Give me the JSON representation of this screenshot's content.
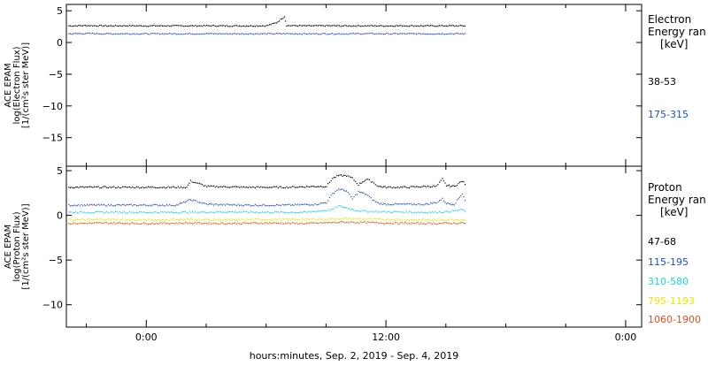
{
  "colors": {
    "background": "#ffffff",
    "axis": "#000000",
    "black": "#000000",
    "blue": "#1f4fd0",
    "cyan": "#19d4e6",
    "yellow": "#e8e800",
    "orange": "#e0501a"
  },
  "x_axis": {
    "label": "hours:minutes, Sep.  2, 2019 - Sep.  4, 2019",
    "ticks": [
      {
        "hour": 0,
        "label": "0:00"
      },
      {
        "hour": 12,
        "label": "12:00"
      },
      {
        "hour": 24,
        "label": "0:00"
      }
    ]
  },
  "chart_data": [
    {
      "type": "scatter",
      "panel": "electron",
      "title": "",
      "ylabel": "ACE EPAM\nlog(Electron Flux)\n[1/(cm²s ster MeV)]",
      "ylabel_lines": [
        "ACE EPAM",
        "log(Electron Flux)",
        "[1/(cm²s ster MeV)]"
      ],
      "legend_title_lines": [
        "Electron",
        "Energy ran",
        "[keV]"
      ],
      "xlim": [
        -4,
        24.8
      ],
      "ylim": [
        -19.5,
        6
      ],
      "yticks": [
        5,
        0,
        -5,
        -10,
        -15
      ],
      "x_unit": "hours from 0:00 Sep. 3, 2019",
      "series": [
        {
          "name": "38-53",
          "color": "#000000",
          "x": [
            -3.9,
            -3.0,
            -2.0,
            -1.0,
            0.0,
            1.0,
            2.0,
            3.0,
            4.0,
            5.0,
            6.0,
            6.5,
            6.9,
            7.0,
            8.0,
            9.0,
            10.0,
            11.0,
            12.0,
            13.0,
            14.0,
            15.0,
            16.0
          ],
          "y": [
            2.7,
            2.75,
            2.7,
            2.72,
            2.7,
            2.71,
            2.7,
            2.72,
            2.7,
            2.7,
            2.72,
            3.2,
            4.2,
            2.75,
            2.7,
            2.72,
            2.7,
            2.71,
            2.7,
            2.72,
            2.7,
            2.71,
            2.7
          ]
        },
        {
          "name": "175-315",
          "color": "#1f4fd0",
          "x": [
            -3.9,
            -3.0,
            -2.0,
            -1.0,
            0.0,
            1.0,
            2.0,
            3.0,
            4.0,
            5.0,
            6.0,
            7.0,
            8.0,
            9.0,
            10.0,
            11.0,
            12.0,
            13.0,
            14.0,
            15.0,
            16.0
          ],
          "y": [
            1.45,
            1.5,
            1.45,
            1.47,
            1.45,
            1.46,
            1.45,
            1.47,
            1.45,
            1.46,
            1.45,
            1.47,
            1.45,
            1.46,
            1.45,
            1.47,
            1.45,
            1.46,
            1.45,
            1.47,
            1.45
          ]
        }
      ]
    },
    {
      "type": "scatter",
      "panel": "proton",
      "title": "",
      "ylabel": "ACE EPAM\nlog(Proton Flux)\n[1/(cm²s ster MeV)]",
      "ylabel_lines": [
        "ACE EPAM",
        "log(Proton Flux)",
        "[1/(cm²s ster MeV)]"
      ],
      "legend_title_lines": [
        "Proton",
        "Energy ran",
        "[keV]"
      ],
      "xlim": [
        -4,
        24.8
      ],
      "ylim": [
        -12.5,
        5.5
      ],
      "yticks": [
        5,
        0,
        -5,
        -10
      ],
      "x_unit": "hours from 0:00 Sep. 3, 2019",
      "series": [
        {
          "name": "47-68",
          "color": "#000000",
          "x": [
            -3.9,
            -2.0,
            0.0,
            1.5,
            2.0,
            2.2,
            3.0,
            5.0,
            7.0,
            8.5,
            9.0,
            9.3,
            9.6,
            10.0,
            10.3,
            10.6,
            11.0,
            11.3,
            11.6,
            12.0,
            13.0,
            14.0,
            14.5,
            14.8,
            15.0,
            15.4,
            15.8,
            16.0
          ],
          "y": [
            3.2,
            3.2,
            3.2,
            3.2,
            3.2,
            3.9,
            3.3,
            3.2,
            3.2,
            3.3,
            3.3,
            4.2,
            4.5,
            4.5,
            4.2,
            3.5,
            4.1,
            3.8,
            3.3,
            3.2,
            3.2,
            3.3,
            3.3,
            4.1,
            3.4,
            3.3,
            3.9,
            3.4
          ]
        },
        {
          "name": "115-195",
          "color": "#1f4fd0",
          "x": [
            -3.9,
            -2.0,
            0.0,
            1.5,
            2.2,
            3.0,
            5.0,
            7.0,
            8.5,
            9.0,
            9.3,
            9.6,
            10.0,
            10.3,
            10.6,
            11.0,
            11.3,
            11.6,
            12.0,
            13.0,
            14.0,
            14.5,
            14.8,
            15.0,
            15.4,
            15.8,
            16.0
          ],
          "y": [
            1.2,
            1.2,
            1.2,
            1.2,
            1.8,
            1.3,
            1.2,
            1.2,
            1.3,
            1.5,
            2.5,
            3.0,
            2.8,
            1.9,
            2.7,
            2.4,
            1.8,
            1.4,
            1.3,
            1.3,
            1.3,
            1.5,
            1.9,
            1.4,
            1.3,
            2.5,
            1.4
          ]
        },
        {
          "name": "310-580",
          "color": "#19d4e6",
          "x": [
            -3.9,
            -2.0,
            0.0,
            2.0,
            4.0,
            6.0,
            8.0,
            9.3,
            9.6,
            10.0,
            10.5,
            11.0,
            12.0,
            14.0,
            15.0,
            15.8,
            16.0
          ],
          "y": [
            0.4,
            0.4,
            0.4,
            0.4,
            0.45,
            0.4,
            0.4,
            0.7,
            1.1,
            0.9,
            0.6,
            0.5,
            0.45,
            0.4,
            0.45,
            0.7,
            0.45
          ]
        },
        {
          "name": "795-1193",
          "color": "#e8e800",
          "x": [
            -3.9,
            -2.0,
            0.0,
            2.0,
            4.0,
            6.0,
            8.0,
            10.0,
            12.0,
            14.0,
            16.0
          ],
          "y": [
            -0.45,
            -0.4,
            -0.45,
            -0.4,
            -0.45,
            -0.4,
            -0.4,
            -0.3,
            -0.4,
            -0.45,
            -0.4
          ]
        },
        {
          "name": "1060-1900",
          "color": "#e0501a",
          "x": [
            -3.9,
            -2.0,
            0.0,
            2.0,
            4.0,
            6.0,
            8.0,
            10.0,
            12.0,
            14.0,
            16.0
          ],
          "y": [
            -0.85,
            -0.8,
            -0.85,
            -0.8,
            -0.85,
            -0.8,
            -0.85,
            -0.7,
            -0.8,
            -0.85,
            -0.8
          ]
        }
      ]
    }
  ]
}
